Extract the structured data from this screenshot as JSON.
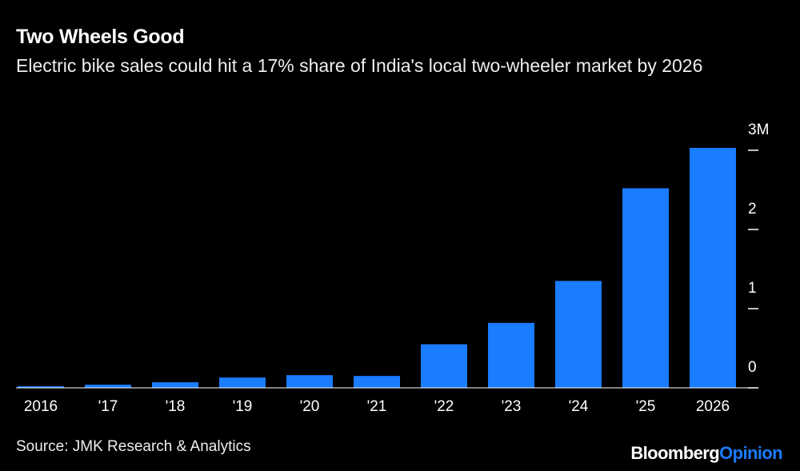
{
  "chart_data": {
    "type": "bar",
    "title": "Two Wheels Good",
    "subtitle": "Electric bike sales could hit a 17% share of India's local two-wheeler market by 2026",
    "categories": [
      "2016",
      "'17",
      "'18",
      "'19",
      "'20",
      "'21",
      "'22",
      "'23",
      "'24",
      "'25",
      "2026"
    ],
    "values": [
      0.02,
      0.04,
      0.07,
      0.13,
      0.16,
      0.15,
      0.55,
      0.82,
      1.35,
      2.52,
      3.03
    ],
    "color": "#1a7cff",
    "ylim": [
      0,
      3.1
    ],
    "yticks": [
      0,
      1,
      2,
      {
        "value": 3,
        "label": "3M"
      }
    ],
    "source": "Source: JMK Research & Analytics"
  },
  "branding": {
    "brand": "Bloomberg",
    "product": "Opinion"
  }
}
